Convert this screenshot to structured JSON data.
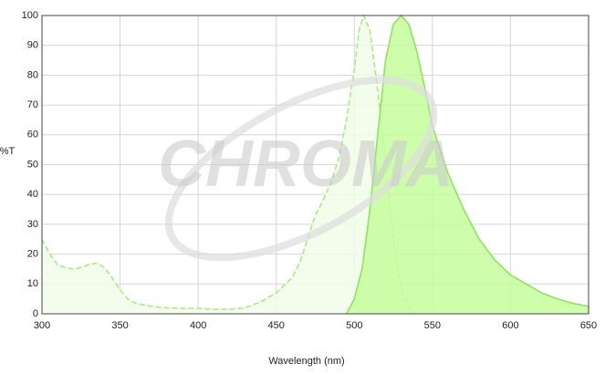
{
  "chart_data": {
    "type": "area",
    "watermark": "CHROMA",
    "x_label": "Wavelength (nm)",
    "y_label": "%T",
    "xlim": [
      300,
      650
    ],
    "xticks": [
      300,
      350,
      400,
      450,
      500,
      550,
      600,
      650
    ],
    "ylim": [
      0,
      100
    ],
    "yticks": [
      0,
      10,
      20,
      30,
      40,
      50,
      60,
      70,
      80,
      90,
      100
    ],
    "grid": true,
    "series": [
      {
        "color": "#a6ee7c",
        "fill": "#f1fde9",
        "dashed": true,
        "x": [
          300,
          305,
          310,
          315,
          320,
          325,
          330,
          335,
          340,
          345,
          350,
          355,
          360,
          370,
          380,
          390,
          400,
          410,
          420,
          430,
          440,
          450,
          460,
          465,
          470,
          475,
          480,
          485,
          490,
          495,
          500,
          503,
          506,
          510,
          515,
          520,
          525,
          530,
          535,
          540
        ],
        "values": [
          25,
          20,
          16.5,
          15.5,
          15,
          15.5,
          16.5,
          17,
          15.5,
          12,
          8,
          5,
          3.5,
          2.5,
          2,
          1.8,
          1.8,
          1.5,
          1.5,
          2,
          4,
          7,
          12,
          17,
          25,
          33,
          38,
          44,
          52,
          65,
          82,
          95,
          100,
          95,
          75,
          50,
          25,
          8,
          2,
          0
        ]
      },
      {
        "color": "#8ee35f",
        "fill": "#c6fd9c",
        "dashed": false,
        "x": [
          495,
          500,
          505,
          510,
          515,
          520,
          525,
          530,
          535,
          540,
          545,
          550,
          555,
          560,
          570,
          580,
          590,
          600,
          610,
          620,
          630,
          640,
          650
        ],
        "values": [
          0,
          5,
          15,
          35,
          60,
          85,
          97,
          100,
          97,
          88,
          76,
          63,
          55,
          47,
          35,
          25,
          18,
          13,
          10,
          7,
          5,
          3.5,
          2.5
        ]
      }
    ]
  }
}
